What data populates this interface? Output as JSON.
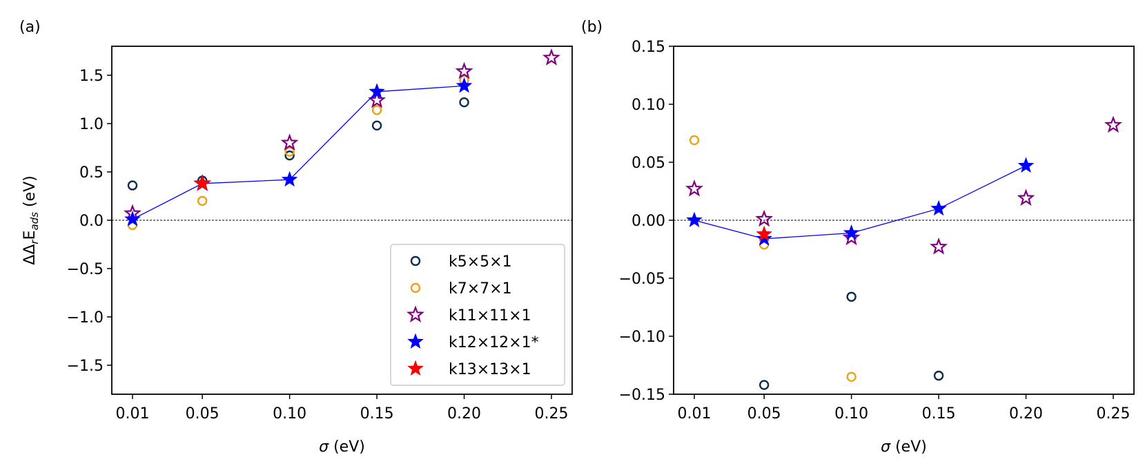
{
  "chart_data": [
    {
      "panel_label": "(a)",
      "type": "scatter",
      "xlabel_symbol": "σ",
      "xlabel_unit": " (eV)",
      "ylabel_main": "ΔΔ",
      "ylabel_sub1": "r",
      "ylabel_mid": "E",
      "ylabel_sub2": "ads",
      "ylabel_unit": " (eV)",
      "x_categories": [
        "0.01",
        "0.05",
        "0.10",
        "0.15",
        "0.20",
        "0.25"
      ],
      "ylim": [
        -1.8,
        1.8
      ],
      "yticks": [
        -1.5,
        -1.0,
        -0.5,
        0.0,
        0.5,
        1.0,
        1.5
      ],
      "ytick_labels": [
        "−1.5",
        "−1.0",
        "−0.5",
        "0.0",
        "0.5",
        "1.0",
        "1.5"
      ],
      "zero_line": true,
      "series": [
        {
          "name": "k5×5×1",
          "marker": "circle",
          "filled": false,
          "color": "#0b2e4f",
          "points": [
            [
              0.01,
              0.36
            ],
            [
              0.05,
              0.41
            ],
            [
              0.1,
              0.67
            ],
            [
              0.15,
              0.98
            ],
            [
              0.2,
              1.22
            ]
          ]
        },
        {
          "name": "k7×7×1",
          "marker": "circle",
          "filled": false,
          "color": "#e8a317",
          "points": [
            [
              0.01,
              -0.05
            ],
            [
              0.05,
              0.2
            ],
            [
              0.1,
              0.71
            ],
            [
              0.15,
              1.14
            ],
            [
              0.2,
              1.45
            ]
          ]
        },
        {
          "name": "k11×11×1",
          "marker": "star",
          "filled": false,
          "color": "#800080",
          "points": [
            [
              0.01,
              0.07
            ],
            [
              0.05,
              0.38
            ],
            [
              0.1,
              0.8
            ],
            [
              0.15,
              1.24
            ],
            [
              0.2,
              1.54
            ],
            [
              0.25,
              1.68
            ]
          ]
        },
        {
          "name": "k12×12×1*",
          "marker": "star",
          "filled": true,
          "color": "#0000ff",
          "line": true,
          "points": [
            [
              0.01,
              0.01
            ],
            [
              0.05,
              0.38
            ],
            [
              0.1,
              0.42
            ],
            [
              0.15,
              1.33
            ],
            [
              0.2,
              1.39
            ]
          ]
        },
        {
          "name": "k13×13×1",
          "marker": "star",
          "filled": true,
          "color": "#ff0000",
          "points": [
            [
              0.05,
              0.38
            ]
          ]
        }
      ],
      "legend_position": "lower-right"
    },
    {
      "panel_label": "(b)",
      "type": "scatter",
      "xlabel_symbol": "σ",
      "xlabel_unit": " (eV)",
      "x_categories": [
        "0.01",
        "0.05",
        "0.10",
        "0.15",
        "0.20",
        "0.25"
      ],
      "ylim": [
        -0.15,
        0.15
      ],
      "yticks": [
        -0.15,
        -0.1,
        -0.05,
        0.0,
        0.05,
        0.1,
        0.15
      ],
      "ytick_labels": [
        "−0.15",
        "−0.10",
        "−0.05",
        "0.00",
        "0.05",
        "0.10",
        "0.15"
      ],
      "zero_line": true,
      "series": [
        {
          "name": "k5×5×1",
          "marker": "circle",
          "filled": false,
          "color": "#0b2e4f",
          "points": [
            [
              0.05,
              -0.142
            ],
            [
              0.1,
              -0.066
            ],
            [
              0.15,
              -0.134
            ]
          ]
        },
        {
          "name": "k7×7×1",
          "marker": "circle",
          "filled": false,
          "color": "#e8a317",
          "points": [
            [
              0.01,
              0.069
            ],
            [
              0.05,
              -0.021
            ],
            [
              0.1,
              -0.135
            ]
          ]
        },
        {
          "name": "k11×11×1",
          "marker": "star",
          "filled": false,
          "color": "#800080",
          "points": [
            [
              0.01,
              0.027
            ],
            [
              0.05,
              0.001
            ],
            [
              0.1,
              -0.015
            ],
            [
              0.15,
              -0.023
            ],
            [
              0.2,
              0.019
            ],
            [
              0.25,
              0.082
            ]
          ]
        },
        {
          "name": "k12×12×1*",
          "marker": "star",
          "filled": true,
          "color": "#0000ff",
          "line": true,
          "points": [
            [
              0.01,
              0.0
            ],
            [
              0.05,
              -0.016
            ],
            [
              0.1,
              -0.011
            ],
            [
              0.15,
              0.01
            ],
            [
              0.2,
              0.047
            ]
          ]
        },
        {
          "name": "k13×13×1",
          "marker": "star",
          "filled": true,
          "color": "#ff0000",
          "points": [
            [
              0.05,
              -0.012
            ]
          ]
        }
      ]
    }
  ]
}
